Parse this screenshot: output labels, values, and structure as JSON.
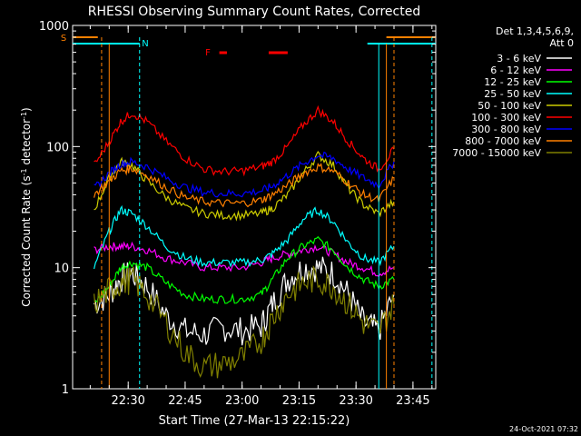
{
  "chart_data": {
    "type": "line",
    "title": "RHESSI Observing Summary Count Rates, Corrected",
    "xlabel": "Start Time (27-Mar-13 22:15:22)",
    "ylabel_main": "Corrected Count Rate (s",
    "ylabel_sup1": "-1",
    "ylabel_mid": " detector",
    "ylabel_sup2": "-1",
    "ylabel_end": ")",
    "ylim": [
      1,
      1000
    ],
    "yscale": "log",
    "xlim": [
      "22:15:22",
      "23:51:00"
    ],
    "x_ticks": [
      "22:30",
      "22:45",
      "23:00",
      "23:15",
      "23:30",
      "23:45"
    ],
    "y_ticks": [
      "1",
      "10",
      "100",
      "1000"
    ],
    "legend_header": [
      "Det 1,3,4,5,6,9,",
      "Att 0"
    ],
    "legend_placement": "right",
    "flag_labels": {
      "s": "S",
      "n": "N",
      "f": "F"
    },
    "timestamp": "24-Oct-2021 07:32",
    "series": [
      {
        "name": "3 - 6 keV",
        "color": "#ffffff",
        "points": [
          [
            "22:21",
            5
          ],
          [
            "22:25",
            6
          ],
          [
            "22:28",
            8
          ],
          [
            "22:31",
            9
          ],
          [
            "22:35",
            7
          ],
          [
            "22:40",
            4
          ],
          [
            "22:45",
            3
          ],
          [
            "22:50",
            2.8
          ],
          [
            "22:55",
            3.2
          ],
          [
            "23:00",
            3
          ],
          [
            "23:05",
            3.3
          ],
          [
            "23:08",
            5
          ],
          [
            "23:12",
            8
          ],
          [
            "23:16",
            10
          ],
          [
            "23:20",
            10
          ],
          [
            "23:24",
            9
          ],
          [
            "23:28",
            6
          ],
          [
            "23:32",
            3.5
          ],
          [
            "23:36",
            3
          ],
          [
            "23:40",
            6
          ]
        ]
      },
      {
        "name": "6 - 12 keV",
        "color": "#ff00ff",
        "points": [
          [
            "22:21",
            14
          ],
          [
            "22:25",
            15
          ],
          [
            "22:28",
            15
          ],
          [
            "22:31",
            15
          ],
          [
            "22:35",
            14
          ],
          [
            "22:40",
            12
          ],
          [
            "22:45",
            11
          ],
          [
            "22:50",
            10
          ],
          [
            "22:55",
            10
          ],
          [
            "23:00",
            10
          ],
          [
            "23:05",
            11
          ],
          [
            "23:08",
            12
          ],
          [
            "23:12",
            13
          ],
          [
            "23:16",
            14
          ],
          [
            "23:20",
            15
          ],
          [
            "23:24",
            13
          ],
          [
            "23:28",
            11
          ],
          [
            "23:32",
            10
          ],
          [
            "23:36",
            9
          ],
          [
            "23:40",
            10
          ]
        ]
      },
      {
        "name": "12 - 25 keV",
        "color": "#00ff00",
        "points": [
          [
            "22:21",
            5
          ],
          [
            "22:25",
            7
          ],
          [
            "22:28",
            10
          ],
          [
            "22:31",
            11
          ],
          [
            "22:35",
            10
          ],
          [
            "22:40",
            7.5
          ],
          [
            "22:45",
            6
          ],
          [
            "22:50",
            5.5
          ],
          [
            "22:55",
            5.5
          ],
          [
            "23:00",
            5.5
          ],
          [
            "23:05",
            6
          ],
          [
            "23:08",
            8
          ],
          [
            "23:12",
            12
          ],
          [
            "23:16",
            15
          ],
          [
            "23:20",
            17
          ],
          [
            "23:24",
            14
          ],
          [
            "23:28",
            10
          ],
          [
            "23:32",
            8
          ],
          [
            "23:36",
            7
          ],
          [
            "23:40",
            8
          ]
        ]
      },
      {
        "name": "25 - 50 keV",
        "color": "#00ffff",
        "points": [
          [
            "22:21",
            10
          ],
          [
            "22:25",
            20
          ],
          [
            "22:28",
            30
          ],
          [
            "22:31",
            28
          ],
          [
            "22:35",
            22
          ],
          [
            "22:40",
            15
          ],
          [
            "22:45",
            12
          ],
          [
            "22:50",
            11
          ],
          [
            "22:55",
            11
          ],
          [
            "23:00",
            11
          ],
          [
            "23:05",
            11.5
          ],
          [
            "23:08",
            13
          ],
          [
            "23:12",
            17
          ],
          [
            "23:16",
            25
          ],
          [
            "23:20",
            30
          ],
          [
            "23:24",
            24
          ],
          [
            "23:28",
            16
          ],
          [
            "23:32",
            12
          ],
          [
            "23:36",
            11
          ],
          [
            "23:40",
            15
          ]
        ]
      },
      {
        "name": "50 - 100 keV",
        "color": "#cccc00",
        "points": [
          [
            "22:21",
            30
          ],
          [
            "22:25",
            55
          ],
          [
            "22:28",
            75
          ],
          [
            "22:31",
            70
          ],
          [
            "22:35",
            52
          ],
          [
            "22:40",
            38
          ],
          [
            "22:45",
            31
          ],
          [
            "22:50",
            28
          ],
          [
            "22:55",
            27
          ],
          [
            "23:00",
            27
          ],
          [
            "23:05",
            28
          ],
          [
            "23:08",
            31
          ],
          [
            "23:12",
            40
          ],
          [
            "23:16",
            60
          ],
          [
            "23:20",
            85
          ],
          [
            "23:24",
            70
          ],
          [
            "23:28",
            45
          ],
          [
            "23:32",
            33
          ],
          [
            "23:36",
            28
          ],
          [
            "23:40",
            35
          ]
        ]
      },
      {
        "name": "100 - 300 keV",
        "color": "#ff0000",
        "points": [
          [
            "22:21",
            70
          ],
          [
            "22:25",
            110
          ],
          [
            "22:28",
            160
          ],
          [
            "22:31",
            190
          ],
          [
            "22:35",
            160
          ],
          [
            "22:40",
            110
          ],
          [
            "22:45",
            80
          ],
          [
            "22:50",
            65
          ],
          [
            "22:55",
            62
          ],
          [
            "23:00",
            63
          ],
          [
            "23:05",
            68
          ],
          [
            "23:08",
            75
          ],
          [
            "23:12",
            100
          ],
          [
            "23:16",
            150
          ],
          [
            "23:20",
            200
          ],
          [
            "23:24",
            160
          ],
          [
            "23:28",
            110
          ],
          [
            "23:32",
            80
          ],
          [
            "23:36",
            65
          ],
          [
            "23:40",
            95
          ]
        ]
      },
      {
        "name": "300 - 800 keV",
        "color": "#0000ff",
        "points": [
          [
            "22:21",
            45
          ],
          [
            "22:25",
            60
          ],
          [
            "22:28",
            72
          ],
          [
            "22:31",
            75
          ],
          [
            "22:35",
            68
          ],
          [
            "22:40",
            55
          ],
          [
            "22:45",
            46
          ],
          [
            "22:50",
            42
          ],
          [
            "22:55",
            41
          ],
          [
            "23:00",
            41
          ],
          [
            "23:05",
            43
          ],
          [
            "23:08",
            47
          ],
          [
            "23:12",
            58
          ],
          [
            "23:16",
            72
          ],
          [
            "23:20",
            85
          ],
          [
            "23:24",
            80
          ],
          [
            "23:28",
            65
          ],
          [
            "23:32",
            55
          ],
          [
            "23:36",
            48
          ],
          [
            "23:40",
            75
          ]
        ]
      },
      {
        "name": "800 - 7000 keV",
        "color": "#ff8000",
        "points": [
          [
            "22:21",
            40
          ],
          [
            "22:25",
            52
          ],
          [
            "22:28",
            63
          ],
          [
            "22:31",
            66
          ],
          [
            "22:35",
            58
          ],
          [
            "22:40",
            46
          ],
          [
            "22:45",
            38
          ],
          [
            "22:50",
            35
          ],
          [
            "22:55",
            34
          ],
          [
            "23:00",
            34
          ],
          [
            "23:05",
            36
          ],
          [
            "23:08",
            40
          ],
          [
            "23:12",
            48
          ],
          [
            "23:16",
            60
          ],
          [
            "23:20",
            68
          ],
          [
            "23:24",
            63
          ],
          [
            "23:28",
            50
          ],
          [
            "23:32",
            40
          ],
          [
            "23:36",
            36
          ],
          [
            "23:40",
            55
          ]
        ]
      },
      {
        "name": "7000 - 15000 keV",
        "color": "#808000",
        "points": [
          [
            "22:21",
            5
          ],
          [
            "22:25",
            6.5
          ],
          [
            "22:28",
            7.5
          ],
          [
            "22:31",
            8
          ],
          [
            "22:35",
            6
          ],
          [
            "22:40",
            3.5
          ],
          [
            "22:45",
            2
          ],
          [
            "22:50",
            1.5
          ],
          [
            "22:55",
            1.6
          ],
          [
            "23:00",
            1.8
          ],
          [
            "23:05",
            2.5
          ],
          [
            "23:08",
            3.8
          ],
          [
            "23:12",
            6
          ],
          [
            "23:16",
            7.5
          ],
          [
            "23:20",
            8
          ],
          [
            "23:24",
            7
          ],
          [
            "23:28",
            5
          ],
          [
            "23:32",
            3.5
          ],
          [
            "23:36",
            3
          ],
          [
            "23:40",
            5
          ]
        ]
      }
    ],
    "flags": {
      "s_color": "#ff8000",
      "n_color": "#00ffff",
      "f_color": "#ff0000"
    }
  }
}
